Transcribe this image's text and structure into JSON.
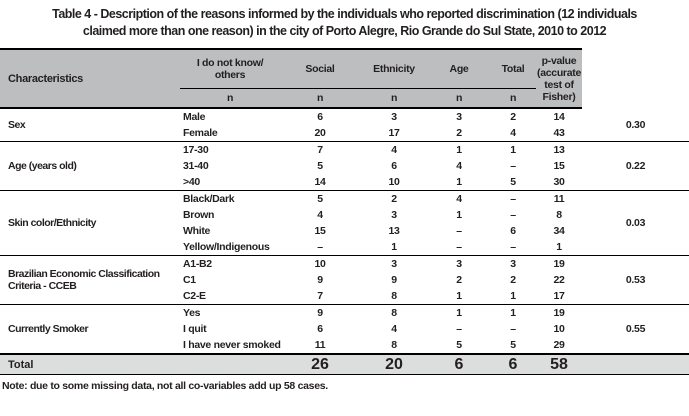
{
  "title": {
    "line1": "Table 4 - Description of the reasons informed by the individuals who reported discrimination (12 individuals",
    "line2": "claimed more than one reason) in the city of Porto Alegre, Rio Grande do Sul State, 2010 to 2012"
  },
  "colors": {
    "header_bg": "#bcbec0",
    "total_row_bg": "#dcdddd",
    "text": "#231f20",
    "border": "#000000"
  },
  "table": {
    "headers": {
      "characteristics": "Characteristics",
      "groups": [
        "I do not know/\nothers",
        "Social",
        "Ethnicity",
        "Age",
        "Total"
      ],
      "n_label": "n",
      "p_value": "p-value\n(accurate test of\nFisher)"
    },
    "sections": [
      {
        "label": "Sex",
        "p_value": "0.30",
        "rows": [
          {
            "sub": "Male",
            "n": [
              "6",
              "3",
              "3",
              "2",
              "14"
            ]
          },
          {
            "sub": "Female",
            "n": [
              "20",
              "17",
              "2",
              "4",
              "43"
            ]
          }
        ]
      },
      {
        "label": "Age (years old)",
        "p_value": "0.22",
        "rows": [
          {
            "sub": "17-30",
            "n": [
              "7",
              "4",
              "1",
              "1",
              "13"
            ]
          },
          {
            "sub": "31-40",
            "n": [
              "5",
              "6",
              "4",
              "–",
              "15"
            ]
          },
          {
            "sub": ">40",
            "n": [
              "14",
              "10",
              "1",
              "5",
              "30"
            ]
          }
        ]
      },
      {
        "label": "Skin color/Ethnicity",
        "p_value": "0.03",
        "rows": [
          {
            "sub": "Black/Dark",
            "n": [
              "5",
              "2",
              "4",
              "–",
              "11"
            ]
          },
          {
            "sub": "Brown",
            "n": [
              "4",
              "3",
              "1",
              "–",
              "8"
            ]
          },
          {
            "sub": "White",
            "n": [
              "15",
              "13",
              "–",
              "6",
              "34"
            ]
          },
          {
            "sub": "Yellow/Indigenous",
            "n": [
              "–",
              "1",
              "–",
              "–",
              "1"
            ]
          }
        ]
      },
      {
        "label": "Brazilian Economic Classification\nCriteria - CCEB",
        "p_value": "0.53",
        "rows": [
          {
            "sub": "A1-B2",
            "n": [
              "10",
              "3",
              "3",
              "3",
              "19"
            ]
          },
          {
            "sub": "C1",
            "n": [
              "9",
              "9",
              "2",
              "2",
              "22"
            ]
          },
          {
            "sub": "C2-E",
            "n": [
              "7",
              "8",
              "1",
              "1",
              "17"
            ]
          }
        ]
      },
      {
        "label": "Currently Smoker",
        "p_value": "0.55",
        "rows": [
          {
            "sub": "Yes",
            "n": [
              "9",
              "8",
              "1",
              "1",
              "19"
            ]
          },
          {
            "sub": "I quit",
            "n": [
              "6",
              "4",
              "–",
              "–",
              "10"
            ]
          },
          {
            "sub": "I have never smoked",
            "n": [
              "11",
              "8",
              "5",
              "5",
              "29"
            ]
          }
        ]
      }
    ],
    "total_row": {
      "label": "Total",
      "n": [
        "26",
        "20",
        "6",
        "6",
        "58"
      ],
      "p_value": ""
    }
  },
  "note": "Note: due to some missing data, not all co-variables add up 58 cases."
}
